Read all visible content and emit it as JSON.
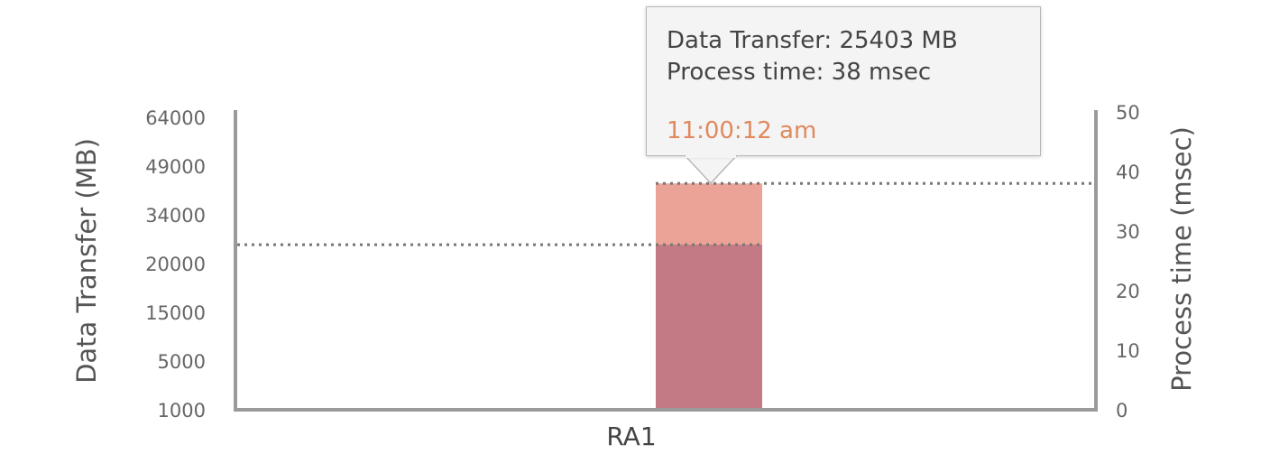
{
  "chart_data": {
    "type": "bar",
    "categories": [
      "RA1"
    ],
    "series": [
      {
        "values": [
          25403
        ],
        "axis": "left",
        "color": "#c47a84"
      },
      {
        "values": [
          38
        ],
        "axis": "right",
        "color": "#eaa396"
      }
    ],
    "left_axis": {
      "label": "Data Transfer (MB)",
      "ticks": [
        "64000",
        "49000",
        "34000",
        "20000",
        "15000",
        "5000",
        "1000"
      ]
    },
    "right_axis": {
      "label": "Process time (msec)",
      "ticks": [
        "50",
        "40",
        "30",
        "20",
        "10",
        "0"
      ],
      "ylim": [
        0,
        50
      ]
    },
    "reference_lines": [
      {
        "axis": "left",
        "value": 25403,
        "style": "dotted"
      },
      {
        "axis": "right",
        "value": 38,
        "style": "dotted"
      }
    ],
    "tooltip": {
      "line1": "Data Transfer: 25403 MB",
      "line2": "Process time: 38 msec",
      "time": "11:00:12 am",
      "time_color": "#e0895d"
    },
    "grid": false,
    "legend": "none"
  }
}
